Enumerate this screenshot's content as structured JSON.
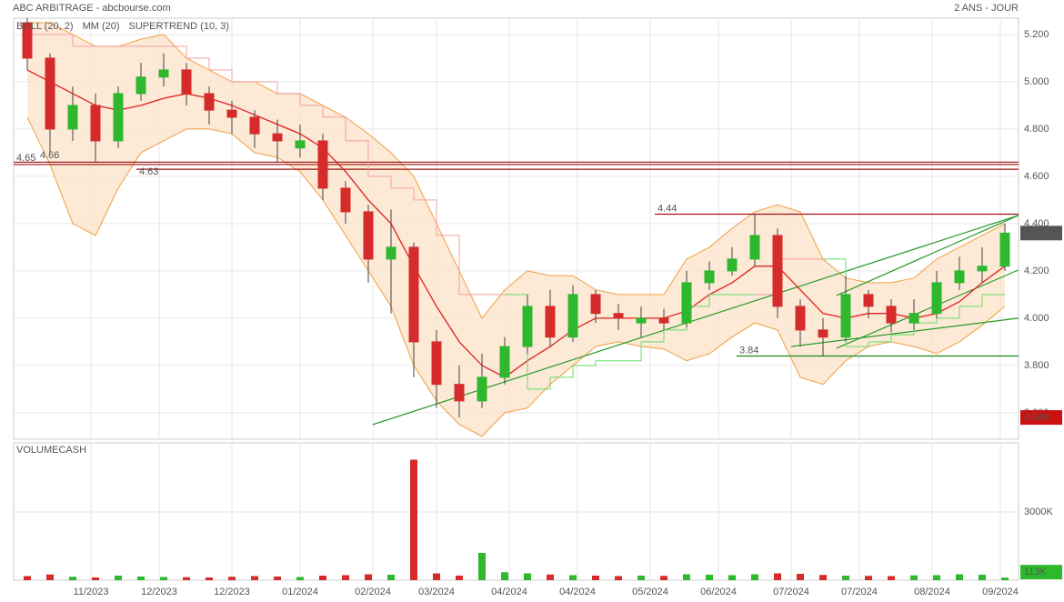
{
  "chart_data": {
    "type": "candlestick",
    "title": "ABC ARBITRAGE - abcbourse.com",
    "subtitle": "2 ANS - JOUR",
    "xlim": [
      -3,
      218
    ],
    "xticks": [
      {
        "value": 14,
        "label": "11/2023"
      },
      {
        "value": 29,
        "label": "12/2023"
      },
      {
        "value": 45,
        "label": "12/2023"
      },
      {
        "value": 60,
        "label": "01/2024"
      },
      {
        "value": 76,
        "label": "02/2024"
      },
      {
        "value": 90,
        "label": "03/2024"
      },
      {
        "value": 106,
        "label": "04/2024"
      },
      {
        "value": 121,
        "label": "04/2024"
      },
      {
        "value": 137,
        "label": "05/2024"
      },
      {
        "value": 152,
        "label": "06/2024"
      },
      {
        "value": 168,
        "label": "07/2024"
      },
      {
        "value": 183,
        "label": "07/2024"
      },
      {
        "value": 199,
        "label": "08/2024"
      },
      {
        "value": 214,
        "label": "09/2024"
      }
    ],
    "ylim": [
      3.488,
      5.269
    ],
    "yticks": [
      {
        "value": 3.6,
        "label": "3.600"
      },
      {
        "value": 3.8,
        "label": "3.800"
      },
      {
        "value": 4.0,
        "label": "4.000"
      },
      {
        "value": 4.2,
        "label": "4.200"
      },
      {
        "value": 4.4,
        "label": "4.400"
      },
      {
        "value": 4.6,
        "label": "4.600"
      },
      {
        "value": 4.8,
        "label": "4.800"
      },
      {
        "value": 5.0,
        "label": "5.000"
      },
      {
        "value": 5.2,
        "label": "5.200"
      }
    ],
    "grid": true,
    "up_color": "#2db82d",
    "down_color": "#d62b2b",
    "x": [
      0,
      5,
      10,
      15,
      20,
      25,
      30,
      35,
      40,
      45,
      50,
      55,
      60,
      65,
      70,
      75,
      80,
      85,
      90,
      95,
      100,
      105,
      110,
      115,
      120,
      125,
      130,
      135,
      140,
      145,
      150,
      155,
      160,
      165,
      170,
      175,
      180,
      185,
      190,
      195,
      200,
      205,
      210,
      215
    ],
    "open": [
      5.25,
      5.1,
      4.8,
      4.9,
      4.75,
      4.95,
      5.02,
      5.05,
      4.95,
      4.88,
      4.85,
      4.78,
      4.72,
      4.75,
      4.55,
      4.45,
      4.25,
      4.3,
      3.9,
      3.72,
      3.65,
      3.75,
      3.88,
      4.05,
      3.92,
      4.1,
      4.02,
      3.98,
      4.0,
      3.98,
      4.15,
      4.2,
      4.25,
      4.35,
      4.05,
      3.95,
      3.92,
      4.1,
      4.05,
      3.98,
      4.02,
      4.15,
      4.2,
      4.22
    ],
    "high": [
      5.27,
      5.12,
      4.98,
      4.95,
      4.98,
      5.08,
      5.12,
      5.08,
      4.98,
      4.92,
      4.88,
      4.84,
      4.82,
      4.78,
      4.58,
      4.48,
      4.46,
      4.32,
      3.95,
      3.8,
      3.85,
      3.92,
      4.1,
      4.12,
      4.14,
      4.12,
      4.06,
      4.05,
      4.04,
      4.2,
      4.24,
      4.3,
      4.44,
      4.38,
      4.08,
      4.0,
      4.18,
      4.12,
      4.08,
      4.08,
      4.2,
      4.26,
      4.3,
      4.4
    ],
    "low": [
      5.05,
      4.7,
      4.75,
      4.66,
      4.72,
      4.92,
      4.98,
      4.9,
      4.82,
      4.78,
      4.72,
      4.66,
      4.68,
      4.5,
      4.4,
      4.15,
      4.02,
      3.75,
      3.62,
      3.58,
      3.62,
      3.72,
      3.85,
      3.88,
      3.9,
      3.98,
      3.95,
      3.92,
      3.95,
      3.96,
      4.12,
      4.18,
      4.22,
      4.0,
      3.88,
      3.84,
      3.9,
      4.0,
      3.94,
      3.95,
      4.0,
      4.12,
      4.15,
      4.2
    ],
    "close": [
      5.1,
      4.8,
      4.9,
      4.75,
      4.95,
      5.02,
      5.05,
      4.95,
      4.88,
      4.85,
      4.78,
      4.75,
      4.75,
      4.55,
      4.45,
      4.25,
      4.3,
      3.9,
      3.72,
      3.65,
      3.75,
      3.88,
      4.05,
      3.92,
      4.1,
      4.02,
      4.0,
      4.0,
      3.98,
      4.15,
      4.2,
      4.25,
      4.35,
      4.05,
      3.95,
      3.92,
      4.1,
      4.05,
      3.98,
      4.02,
      4.15,
      4.2,
      4.22,
      4.36
    ],
    "series": [
      {
        "name": "BOLL (20, 2)",
        "kind": "band",
        "color": "#f0a040",
        "fill": "#fbe3cc",
        "upper": [
          5.25,
          5.25,
          5.2,
          5.15,
          5.15,
          5.18,
          5.2,
          5.1,
          5.05,
          5.0,
          5.0,
          4.95,
          4.95,
          4.9,
          4.85,
          4.78,
          4.7,
          4.6,
          4.4,
          4.2,
          4.0,
          4.12,
          4.2,
          4.18,
          4.18,
          4.12,
          4.1,
          4.1,
          4.1,
          4.25,
          4.3,
          4.38,
          4.45,
          4.48,
          4.45,
          4.25,
          4.17,
          4.15,
          4.15,
          4.17,
          4.25,
          4.3,
          4.35,
          4.4
        ],
        "lower": [
          4.85,
          4.65,
          4.4,
          4.35,
          4.55,
          4.7,
          4.75,
          4.8,
          4.8,
          4.78,
          4.7,
          4.68,
          4.62,
          4.5,
          4.35,
          4.2,
          4.05,
          3.8,
          3.65,
          3.55,
          3.5,
          3.6,
          3.62,
          3.72,
          3.8,
          3.88,
          3.9,
          3.88,
          3.87,
          3.82,
          3.85,
          3.92,
          3.98,
          3.95,
          3.75,
          3.72,
          3.82,
          3.88,
          3.9,
          3.88,
          3.85,
          3.9,
          3.97,
          4.05
        ]
      },
      {
        "name": "MM (20)",
        "kind": "line",
        "color": "#e02020",
        "values": [
          5.05,
          5.0,
          4.95,
          4.9,
          4.88,
          4.9,
          4.93,
          4.95,
          4.93,
          4.9,
          4.86,
          4.82,
          4.78,
          4.72,
          4.62,
          4.5,
          4.4,
          4.22,
          4.05,
          3.9,
          3.8,
          3.75,
          3.82,
          3.88,
          3.95,
          4.0,
          4.0,
          4.0,
          4.0,
          4.03,
          4.1,
          4.15,
          4.22,
          4.22,
          4.12,
          4.02,
          4.0,
          4.02,
          4.02,
          4.0,
          4.02,
          4.07,
          4.15,
          4.22
        ]
      },
      {
        "name": "SUPERTREND (10, 3)",
        "kind": "supertrend",
        "color": "#f4a0a0",
        "up_color": "#66dd66",
        "values": [
          5.2,
          5.2,
          5.15,
          5.15,
          5.15,
          5.15,
          5.15,
          5.1,
          5.05,
          5.0,
          5.0,
          4.95,
          4.9,
          4.85,
          4.75,
          4.6,
          4.55,
          4.5,
          4.35,
          4.1,
          4.1,
          4.1,
          3.7,
          3.75,
          3.8,
          3.82,
          3.82,
          3.9,
          3.95,
          4.05,
          4.1,
          4.1,
          4.1,
          4.25,
          4.25,
          4.25,
          3.88,
          3.9,
          3.93,
          3.98,
          4.0,
          4.05,
          4.1,
          4.1
        ]
      }
    ],
    "levels": [
      {
        "value": 4.66,
        "label": "4.66",
        "start": -3,
        "color": "#a01010"
      },
      {
        "value": 4.65,
        "label": "4.65",
        "start": -3,
        "color": "#a01010"
      },
      {
        "value": 4.63,
        "label": "4.63",
        "start": 24,
        "color": "#a01010"
      },
      {
        "value": 4.44,
        "label": "4.44",
        "start": 138,
        "color": "#a01010"
      },
      {
        "value": 3.84,
        "label": "3.84",
        "start": 156,
        "color": "#1a8a1a"
      }
    ],
    "trendlines": {
      "color": "#2a9a2a",
      "lines": [
        {
          "x": [
            76,
            218
          ],
          "y": [
            3.55,
            4.435
          ]
        },
        {
          "x": [
            178,
            218
          ],
          "y": [
            4.096,
            4.435
          ]
        },
        {
          "x": [
            178,
            218
          ],
          "y": [
            3.873,
            4.204
          ]
        },
        {
          "x": [
            168,
            218
          ],
          "y": [
            3.88,
            4.0
          ]
        }
      ]
    },
    "price_tags": [
      {
        "value": 4.36,
        "label": "4.360",
        "color": "#555555"
      },
      {
        "value": 3.58,
        "label": "3.580",
        "color": "#cc1111"
      }
    ],
    "volume_panel": {
      "type": "bar",
      "title": "VOLUMECASH",
      "ylim": [
        0,
        6040
      ],
      "yticks": [
        {
          "value": 3000,
          "label": "3000K"
        }
      ],
      "values": [
        180,
        250,
        150,
        120,
        200,
        160,
        140,
        130,
        120,
        150,
        180,
        160,
        140,
        200,
        220,
        260,
        240,
        5300,
        300,
        200,
        1200,
        350,
        300,
        250,
        220,
        200,
        180,
        200,
        190,
        260,
        240,
        220,
        260,
        300,
        280,
        230,
        200,
        190,
        180,
        210,
        220,
        260,
        240,
        113
      ],
      "tag": {
        "value": 113,
        "label": "113K",
        "color": "#2db82d"
      }
    }
  }
}
